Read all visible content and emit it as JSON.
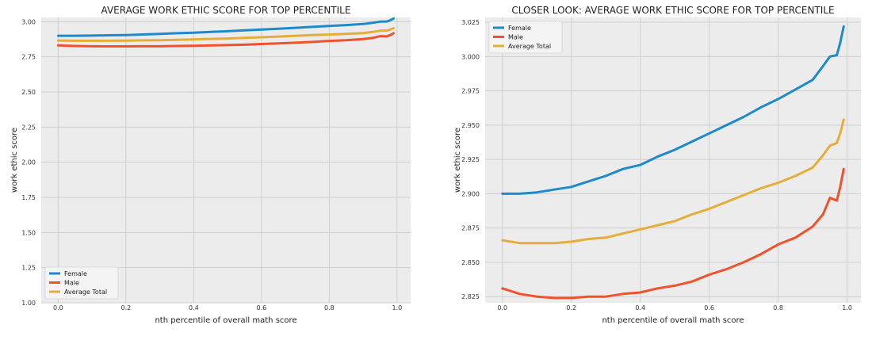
{
  "chart_data": [
    {
      "type": "line",
      "title": "AVERAGE WORK ETHIC SCORE FOR TOP PERCENTILE",
      "xlabel": "nth percentile of overall math score",
      "ylabel": "work ethic score",
      "xlim": [
        -0.05,
        1.04
      ],
      "ylim": [
        1.0,
        3.03
      ],
      "xticks": [
        "0.0",
        "0.2",
        "0.4",
        "0.6",
        "0.8",
        "1.0"
      ],
      "xtick_values": [
        0.0,
        0.2,
        0.4,
        0.6,
        0.8,
        1.0
      ],
      "yticks": [
        "1.00",
        "1.25",
        "1.50",
        "1.75",
        "2.00",
        "2.25",
        "2.50",
        "2.75",
        "3.00"
      ],
      "ytick_values": [
        1.0,
        1.25,
        1.5,
        1.75,
        2.0,
        2.25,
        2.5,
        2.75,
        3.0
      ],
      "grid": true,
      "legend_position": "lower-left",
      "x": [
        0.0,
        0.05,
        0.1,
        0.15,
        0.2,
        0.25,
        0.3,
        0.35,
        0.4,
        0.45,
        0.5,
        0.55,
        0.6,
        0.65,
        0.7,
        0.75,
        0.8,
        0.85,
        0.9,
        0.93,
        0.95,
        0.97,
        0.98,
        0.99
      ],
      "series": [
        {
          "name": "Female",
          "color": "#1f8ac9",
          "values": [
            2.9,
            2.9,
            2.901,
            2.903,
            2.905,
            2.909,
            2.913,
            2.918,
            2.921,
            2.927,
            2.932,
            2.938,
            2.944,
            2.95,
            2.956,
            2.963,
            2.969,
            2.976,
            2.983,
            2.993,
            3.0,
            3.001,
            3.01,
            3.022
          ]
        },
        {
          "name": "Male",
          "color": "#f0532b",
          "values": [
            2.831,
            2.827,
            2.825,
            2.824,
            2.824,
            2.825,
            2.825,
            2.827,
            2.828,
            2.831,
            2.833,
            2.836,
            2.841,
            2.845,
            2.85,
            2.856,
            2.863,
            2.868,
            2.876,
            2.885,
            2.897,
            2.895,
            2.905,
            2.918
          ]
        },
        {
          "name": "Average Total",
          "color": "#e5ae38",
          "values": [
            2.866,
            2.864,
            2.864,
            2.864,
            2.865,
            2.867,
            2.868,
            2.871,
            2.874,
            2.877,
            2.88,
            2.885,
            2.889,
            2.894,
            2.899,
            2.904,
            2.908,
            2.913,
            2.919,
            2.928,
            2.935,
            2.937,
            2.944,
            2.954
          ]
        }
      ]
    },
    {
      "type": "line",
      "title": "CLOSER LOOK: AVERAGE WORK ETHIC SCORE FOR TOP PERCENTILE",
      "xlabel": "nth percentile of overall math score",
      "ylabel": "work ethic score",
      "xlim": [
        -0.05,
        1.04
      ],
      "ylim": [
        2.8205,
        3.0285
      ],
      "xticks": [
        "0.0",
        "0.2",
        "0.4",
        "0.6",
        "0.8",
        "1.0"
      ],
      "xtick_values": [
        0.0,
        0.2,
        0.4,
        0.6,
        0.8,
        1.0
      ],
      "yticks": [
        "2.825",
        "2.850",
        "2.875",
        "2.900",
        "2.925",
        "2.950",
        "2.975",
        "3.000",
        "3.025"
      ],
      "ytick_values": [
        2.825,
        2.85,
        2.875,
        2.9,
        2.925,
        2.95,
        2.975,
        3.0,
        3.025
      ],
      "grid": true,
      "legend_position": "top-left",
      "x": [
        0.0,
        0.05,
        0.1,
        0.15,
        0.2,
        0.25,
        0.3,
        0.35,
        0.4,
        0.45,
        0.5,
        0.55,
        0.6,
        0.65,
        0.7,
        0.75,
        0.8,
        0.85,
        0.9,
        0.93,
        0.95,
        0.97,
        0.98,
        0.99
      ],
      "series": [
        {
          "name": "Female",
          "color": "#1f8ac9",
          "values": [
            2.9,
            2.9,
            2.901,
            2.903,
            2.905,
            2.909,
            2.913,
            2.918,
            2.921,
            2.927,
            2.932,
            2.938,
            2.944,
            2.95,
            2.956,
            2.963,
            2.969,
            2.976,
            2.983,
            2.993,
            3.0,
            3.001,
            3.01,
            3.022
          ]
        },
        {
          "name": "Male",
          "color": "#f0532b",
          "values": [
            2.831,
            2.827,
            2.825,
            2.824,
            2.824,
            2.825,
            2.825,
            2.827,
            2.828,
            2.831,
            2.833,
            2.836,
            2.841,
            2.845,
            2.85,
            2.856,
            2.863,
            2.868,
            2.876,
            2.885,
            2.897,
            2.895,
            2.905,
            2.918
          ]
        },
        {
          "name": "Average Total",
          "color": "#e5ae38",
          "values": [
            2.866,
            2.864,
            2.864,
            2.864,
            2.865,
            2.867,
            2.868,
            2.871,
            2.874,
            2.877,
            2.88,
            2.885,
            2.889,
            2.894,
            2.899,
            2.904,
            2.908,
            2.913,
            2.919,
            2.928,
            2.935,
            2.937,
            2.944,
            2.954
          ]
        }
      ]
    }
  ]
}
